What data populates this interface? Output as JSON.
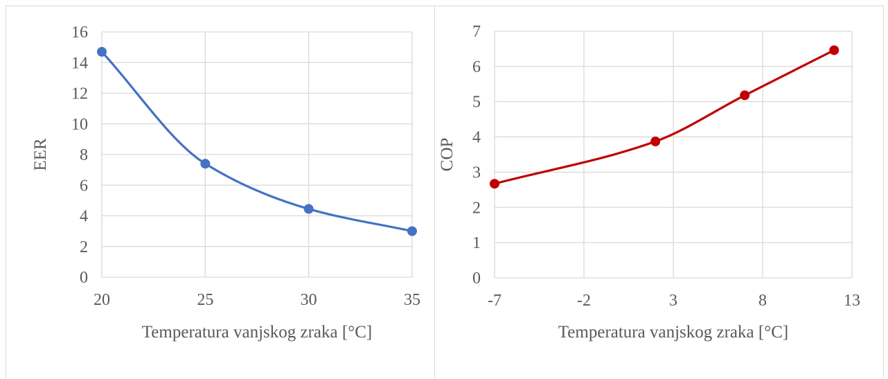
{
  "chart_data": [
    {
      "type": "line",
      "smooth": true,
      "title": "",
      "xlabel": "Temperatura vanjskog zraka [°C]",
      "ylabel": "EER",
      "xlim": [
        20,
        35
      ],
      "ylim": [
        0,
        16
      ],
      "xticks": [
        20,
        25,
        30,
        35
      ],
      "xtick_labels": [
        "20",
        "25",
        "30",
        "35"
      ],
      "yticks": [
        0,
        2,
        4,
        6,
        8,
        10,
        12,
        14,
        16
      ],
      "ytick_labels": [
        "0",
        "2",
        "4",
        "6",
        "8",
        "10",
        "12",
        "14",
        "16"
      ],
      "grid": true,
      "legend": "none",
      "series": [
        {
          "color": "#4472c4",
          "x": [
            20,
            25,
            30,
            35
          ],
          "y": [
            14.7,
            7.4,
            4.45,
            3.0
          ]
        }
      ]
    },
    {
      "type": "line",
      "smooth": true,
      "title": "",
      "xlabel": "Temperatura vanjskog zraka [°C]",
      "ylabel": "COP",
      "xlim": [
        -7,
        13
      ],
      "ylim": [
        0,
        7
      ],
      "xticks": [
        -7,
        -2,
        3,
        8,
        13
      ],
      "xtick_labels": [
        "-7",
        "-2",
        "3",
        "8",
        "13"
      ],
      "yticks": [
        0,
        1,
        2,
        3,
        4,
        5,
        6,
        7
      ],
      "ytick_labels": [
        "0",
        "1",
        "2",
        "3",
        "4",
        "5",
        "6",
        "7"
      ],
      "grid": true,
      "legend": "none",
      "series": [
        {
          "color": "#c00000",
          "x": [
            -7,
            2,
            7,
            12
          ],
          "y": [
            2.67,
            3.87,
            5.18,
            6.46
          ]
        }
      ]
    }
  ]
}
